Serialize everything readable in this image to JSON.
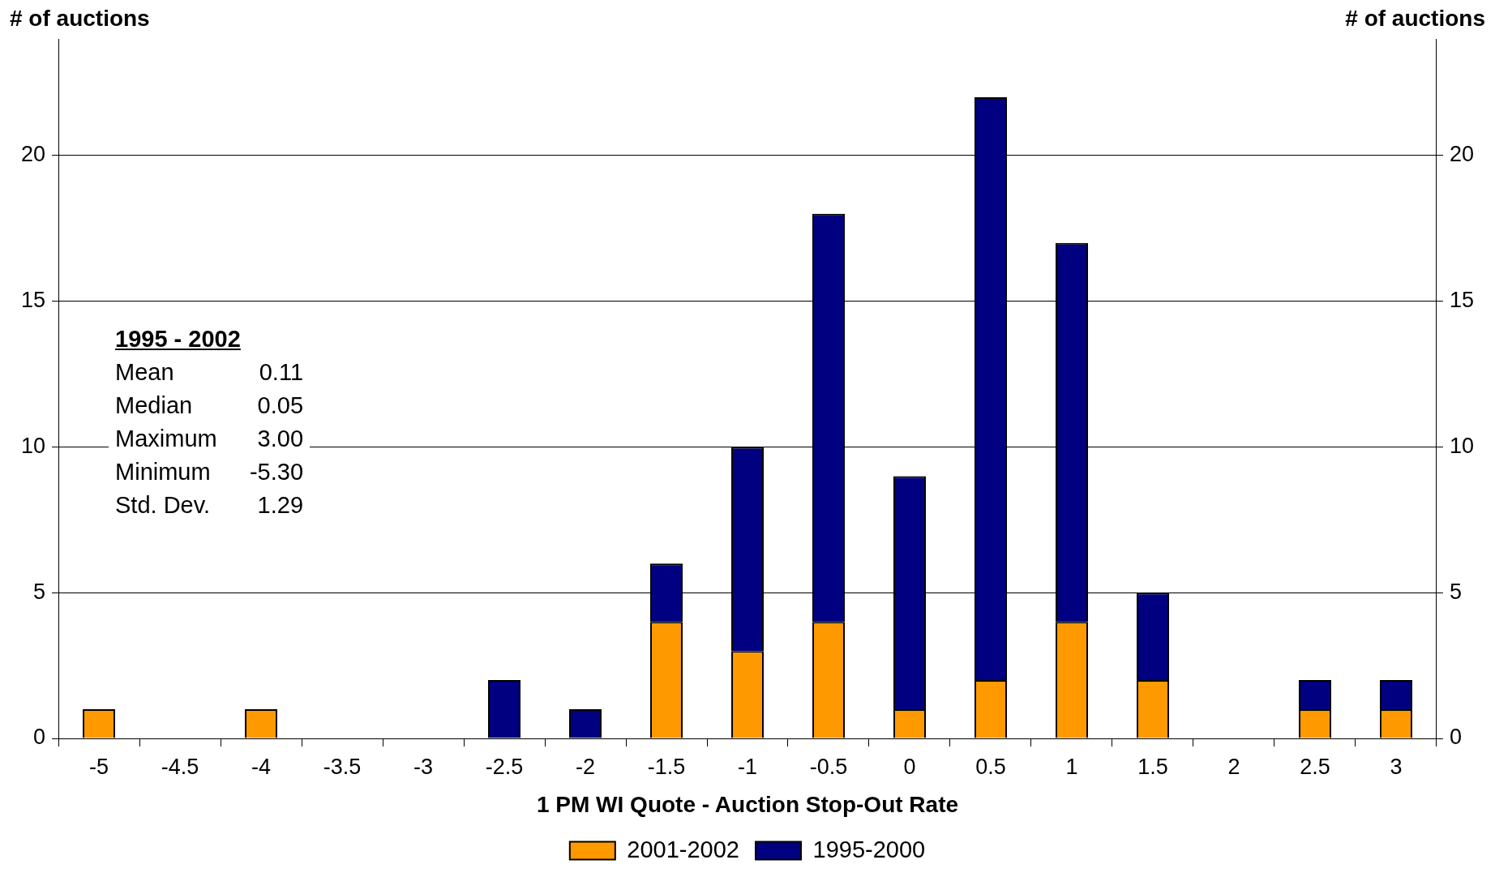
{
  "chart_data": {
    "type": "bar",
    "stacked": true,
    "xlabel": "1 PM WI Quote - Auction Stop-Out Rate",
    "ylabel": "# of auctions",
    "y2label": "# of auctions",
    "categories": [
      "-5",
      "-4.5",
      "-4",
      "-3.5",
      "-3",
      "-2.5",
      "-2",
      "-1.5",
      "-1",
      "-0.5",
      "0",
      "0.5",
      "1",
      "1.5",
      "2",
      "2.5",
      "3"
    ],
    "series": [
      {
        "name": "2001-2002",
        "color": "#ff9900",
        "values": [
          1,
          0,
          1,
          0,
          0,
          0,
          0,
          4,
          3,
          4,
          1,
          2,
          4,
          2,
          0,
          1,
          1
        ]
      },
      {
        "name": "1995-2000",
        "color": "#000080",
        "values": [
          0,
          0,
          0,
          0,
          0,
          2,
          1,
          2,
          7,
          14,
          8,
          20,
          13,
          3,
          0,
          1,
          1
        ]
      }
    ],
    "ylim": [
      0,
      24
    ],
    "yticks": [
      0,
      5,
      10,
      15,
      20
    ],
    "y2lim": [
      0,
      24
    ],
    "y2ticks": [
      0,
      5,
      10,
      15,
      20
    ],
    "grid": "y",
    "legend": "bottom",
    "annotations": [
      "1995 - 2002",
      "Mean 0.11",
      "Median 0.05",
      "Maximum 3.00",
      "Minimum -5.30",
      "Std. Dev. 1.29"
    ]
  }
}
